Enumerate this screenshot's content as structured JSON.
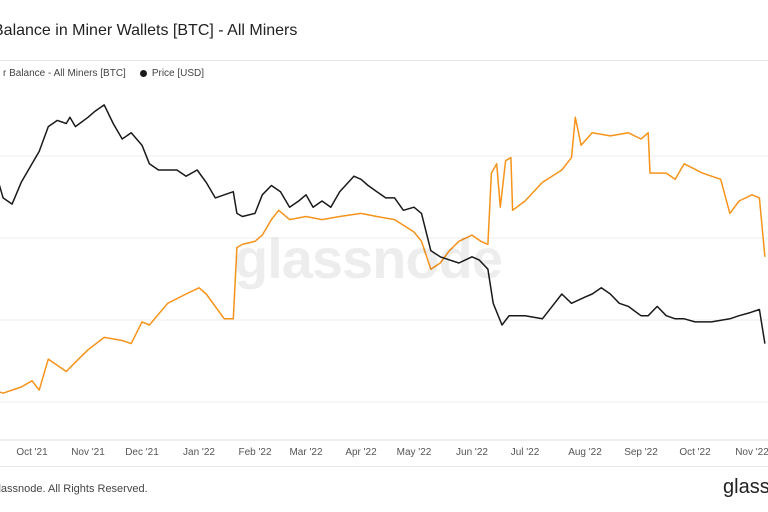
{
  "header": {
    "title": "Balance in Miner Wallets [BTC] - All Miners"
  },
  "footer": {
    "copyright": "ilassnode. All Rights Reserved.",
    "logo": "glass"
  },
  "watermark": "glassnode",
  "colors": {
    "balance": "#f7931a",
    "price": "#1a1a1a",
    "grid": "#eeeeee",
    "axis_text": "#555555"
  },
  "chart_data": {
    "type": "line",
    "xlabel": "",
    "ylabel": "",
    "x_ticks": [
      "Oct '21",
      "Nov '21",
      "Dec '21",
      "Jan '22",
      "Feb '22",
      "Mar '22",
      "Apr '22",
      "May '22",
      "Jun '22",
      "Jul '22",
      "Aug '22",
      "Sep '22",
      "Oct '22",
      "Nov '22"
    ],
    "legend": [
      "r Balance - All Miners [BTC]",
      "Price [USD]"
    ],
    "grid": true,
    "legend_position": "top-left",
    "series": [
      {
        "name": "r Balance - All Miners [BTC]",
        "color": "#f7931a",
        "y_scale": [
          0,
          100
        ],
        "points": [
          [
            "2021-09-10",
            9
          ],
          [
            "2021-09-15",
            8
          ],
          [
            "2021-09-25",
            10
          ],
          [
            "2021-10-01",
            12
          ],
          [
            "2021-10-05",
            9
          ],
          [
            "2021-10-10",
            19
          ],
          [
            "2021-10-20",
            15
          ],
          [
            "2021-10-25",
            18
          ],
          [
            "2021-11-01",
            22
          ],
          [
            "2021-11-10",
            26
          ],
          [
            "2021-11-20",
            25
          ],
          [
            "2021-11-25",
            24
          ],
          [
            "2021-12-01",
            31
          ],
          [
            "2021-12-05",
            30
          ],
          [
            "2021-12-15",
            37
          ],
          [
            "2021-12-25",
            40
          ],
          [
            "2022-01-01",
            42
          ],
          [
            "2022-01-05",
            40
          ],
          [
            "2022-01-15",
            32
          ],
          [
            "2022-01-20",
            32
          ],
          [
            "2022-01-22",
            55
          ],
          [
            "2022-01-25",
            56
          ],
          [
            "2022-02-01",
            57
          ],
          [
            "2022-02-05",
            59
          ],
          [
            "2022-02-10",
            64
          ],
          [
            "2022-02-14",
            67
          ],
          [
            "2022-02-20",
            64
          ],
          [
            "2022-03-01",
            65
          ],
          [
            "2022-03-10",
            64
          ],
          [
            "2022-03-20",
            65
          ],
          [
            "2022-04-01",
            66
          ],
          [
            "2022-04-10",
            65
          ],
          [
            "2022-04-20",
            64
          ],
          [
            "2022-05-01",
            60
          ],
          [
            "2022-05-05",
            57
          ],
          [
            "2022-05-10",
            48
          ],
          [
            "2022-05-15",
            50
          ],
          [
            "2022-05-20",
            54
          ],
          [
            "2022-05-25",
            57
          ],
          [
            "2022-06-01",
            59
          ],
          [
            "2022-06-06",
            57
          ],
          [
            "2022-06-10",
            56
          ],
          [
            "2022-06-12",
            79
          ],
          [
            "2022-06-15",
            82
          ],
          [
            "2022-06-17",
            68
          ],
          [
            "2022-06-20",
            83
          ],
          [
            "2022-06-23",
            84
          ],
          [
            "2022-06-24",
            67
          ],
          [
            "2022-07-01",
            70
          ],
          [
            "2022-07-10",
            76
          ],
          [
            "2022-07-20",
            80
          ],
          [
            "2022-07-25",
            84
          ],
          [
            "2022-07-27",
            97
          ],
          [
            "2022-07-30",
            88
          ],
          [
            "2022-08-05",
            92
          ],
          [
            "2022-08-15",
            91
          ],
          [
            "2022-08-25",
            92
          ],
          [
            "2022-09-01",
            90
          ],
          [
            "2022-09-05",
            92
          ],
          [
            "2022-09-06",
            79
          ],
          [
            "2022-09-15",
            79
          ],
          [
            "2022-09-20",
            77
          ],
          [
            "2022-09-25",
            82
          ],
          [
            "2022-10-05",
            79
          ],
          [
            "2022-10-15",
            77
          ],
          [
            "2022-10-20",
            66
          ],
          [
            "2022-10-25",
            70
          ],
          [
            "2022-11-01",
            72
          ],
          [
            "2022-11-05",
            71
          ],
          [
            "2022-11-08",
            52
          ]
        ]
      },
      {
        "name": "Price [USD]",
        "color": "#1a1a1a",
        "y_scale": [
          0,
          100
        ],
        "points": [
          [
            "2021-09-10",
            78
          ],
          [
            "2021-09-13",
            75
          ],
          [
            "2021-09-15",
            71
          ],
          [
            "2021-09-20",
            69
          ],
          [
            "2021-09-25",
            76
          ],
          [
            "2021-10-01",
            82
          ],
          [
            "2021-10-05",
            86
          ],
          [
            "2021-10-10",
            94
          ],
          [
            "2021-10-15",
            96
          ],
          [
            "2021-10-20",
            95
          ],
          [
            "2021-10-22",
            97
          ],
          [
            "2021-10-25",
            94
          ],
          [
            "2021-11-01",
            97
          ],
          [
            "2021-11-05",
            99
          ],
          [
            "2021-11-10",
            101
          ],
          [
            "2021-11-15",
            95
          ],
          [
            "2021-11-20",
            90
          ],
          [
            "2021-11-25",
            92
          ],
          [
            "2021-12-01",
            88
          ],
          [
            "2021-12-05",
            82
          ],
          [
            "2021-12-10",
            80
          ],
          [
            "2021-12-20",
            80
          ],
          [
            "2021-12-25",
            78
          ],
          [
            "2021-12-31",
            80
          ],
          [
            "2022-01-05",
            76
          ],
          [
            "2022-01-10",
            71
          ],
          [
            "2022-01-15",
            72
          ],
          [
            "2022-01-20",
            73
          ],
          [
            "2022-01-22",
            66
          ],
          [
            "2022-01-25",
            65
          ],
          [
            "2022-02-01",
            66
          ],
          [
            "2022-02-05",
            72
          ],
          [
            "2022-02-10",
            75
          ],
          [
            "2022-02-15",
            73
          ],
          [
            "2022-02-20",
            68
          ],
          [
            "2022-02-25",
            70
          ],
          [
            "2022-03-01",
            72
          ],
          [
            "2022-03-05",
            68
          ],
          [
            "2022-03-10",
            70
          ],
          [
            "2022-03-15",
            68
          ],
          [
            "2022-03-20",
            73
          ],
          [
            "2022-03-28",
            78
          ],
          [
            "2022-04-01",
            77
          ],
          [
            "2022-04-05",
            75
          ],
          [
            "2022-04-10",
            73
          ],
          [
            "2022-04-15",
            71
          ],
          [
            "2022-04-20",
            71
          ],
          [
            "2022-04-25",
            67
          ],
          [
            "2022-05-01",
            68
          ],
          [
            "2022-05-05",
            66
          ],
          [
            "2022-05-10",
            54
          ],
          [
            "2022-05-15",
            52
          ],
          [
            "2022-05-20",
            51
          ],
          [
            "2022-05-25",
            50
          ],
          [
            "2022-06-01",
            52
          ],
          [
            "2022-06-05",
            51
          ],
          [
            "2022-06-10",
            48
          ],
          [
            "2022-06-13",
            37
          ],
          [
            "2022-06-18",
            30
          ],
          [
            "2022-06-22",
            33
          ],
          [
            "2022-07-01",
            33
          ],
          [
            "2022-07-10",
            32
          ],
          [
            "2022-07-15",
            36
          ],
          [
            "2022-07-20",
            40
          ],
          [
            "2022-07-25",
            37
          ],
          [
            "2022-08-01",
            39
          ],
          [
            "2022-08-05",
            40
          ],
          [
            "2022-08-10",
            42
          ],
          [
            "2022-08-15",
            40
          ],
          [
            "2022-08-20",
            37
          ],
          [
            "2022-08-25",
            36
          ],
          [
            "2022-09-01",
            33
          ],
          [
            "2022-09-05",
            33
          ],
          [
            "2022-09-10",
            36
          ],
          [
            "2022-09-15",
            33
          ],
          [
            "2022-09-20",
            32
          ],
          [
            "2022-09-25",
            32
          ],
          [
            "2022-10-01",
            31
          ],
          [
            "2022-10-10",
            31
          ],
          [
            "2022-10-20",
            32
          ],
          [
            "2022-10-25",
            33
          ],
          [
            "2022-10-31",
            34
          ],
          [
            "2022-11-05",
            35
          ],
          [
            "2022-11-08",
            24
          ]
        ]
      }
    ]
  }
}
